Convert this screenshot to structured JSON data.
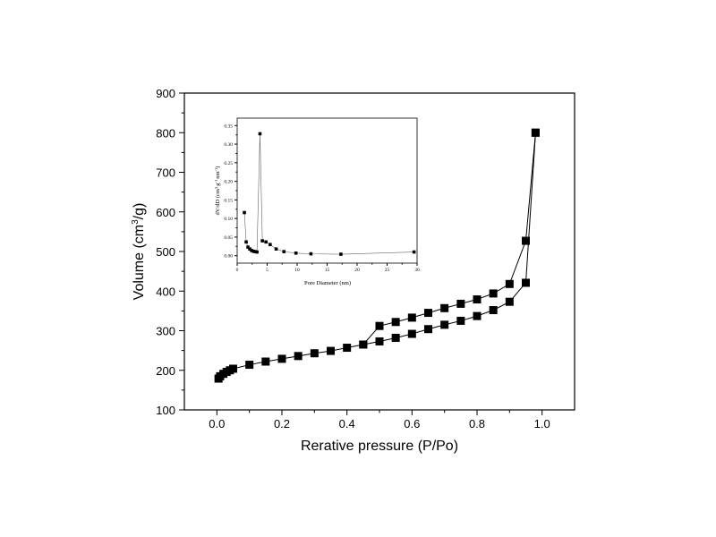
{
  "chart_data": [
    {
      "type": "line",
      "title": "",
      "xlabel": "Rerative pressure (P/Po)",
      "ylabel_parts": [
        "Volume (cm",
        "3",
        "/g)"
      ],
      "xlim": [
        -0.1,
        1.1
      ],
      "ylim": [
        100,
        900
      ],
      "xticks": [
        0.0,
        0.2,
        0.4,
        0.6,
        0.8,
        1.0
      ],
      "xtick_labels": [
        "0.0",
        "0.2",
        "0.4",
        "0.6",
        "0.8",
        "1.0"
      ],
      "yticks": [
        100,
        200,
        300,
        400,
        500,
        600,
        700,
        800,
        900
      ],
      "ytick_labels": [
        "100",
        "200",
        "300",
        "400",
        "500",
        "600",
        "700",
        "800",
        "900"
      ],
      "marker": "filled-square",
      "grid": false,
      "series": [
        {
          "points": [
            [
              0.005,
              179
            ],
            [
              0.01,
              185
            ],
            [
              0.02,
              191
            ],
            [
              0.03,
              196
            ],
            [
              0.04,
              200
            ],
            [
              0.05,
              204
            ],
            [
              0.1,
              214
            ],
            [
              0.15,
              222
            ],
            [
              0.2,
              229
            ],
            [
              0.25,
              236
            ],
            [
              0.3,
              243
            ],
            [
              0.35,
              249
            ],
            [
              0.4,
              257
            ],
            [
              0.45,
              265
            ],
            [
              0.5,
              273
            ],
            [
              0.55,
              282
            ],
            [
              0.6,
              292
            ],
            [
              0.65,
              304
            ],
            [
              0.7,
              315
            ],
            [
              0.75,
              325
            ],
            [
              0.8,
              337
            ],
            [
              0.85,
              352
            ],
            [
              0.9,
              373
            ],
            [
              0.95,
              421
            ],
            [
              0.98,
              800
            ]
          ]
        },
        {
          "points": [
            [
              0.98,
              800
            ],
            [
              0.95,
              527
            ],
            [
              0.9,
              418
            ],
            [
              0.85,
              394
            ],
            [
              0.8,
              379
            ],
            [
              0.75,
              368
            ],
            [
              0.7,
              357
            ],
            [
              0.65,
              345
            ],
            [
              0.6,
              333
            ],
            [
              0.55,
              322
            ],
            [
              0.5,
              312
            ],
            [
              0.45,
              265
            ]
          ]
        }
      ]
    },
    {
      "type": "line",
      "title": "",
      "xlabel": "Pore Diameter (nm)",
      "ylabel": "dV/dD (cm3 g-1 nm-1)",
      "ylabel_parts": [
        "dV/dD (cm",
        "3",
        "g",
        "-1",
        "nm",
        "-1",
        ")"
      ],
      "xlim": [
        0,
        30
      ],
      "ylim": [
        -0.02,
        0.37
      ],
      "xticks": [
        0,
        5,
        10,
        15,
        20,
        25,
        30
      ],
      "xtick_labels": [
        "0",
        "5",
        "10",
        "15",
        "20",
        "25",
        "30"
      ],
      "yticks": [
        0.0,
        0.05,
        0.1,
        0.15,
        0.2,
        0.25,
        0.3,
        0.35
      ],
      "ytick_labels": [
        "0.00",
        "0.05",
        "0.10",
        "0.15",
        "0.20",
        "0.25",
        "0.30",
        "0.35"
      ],
      "marker": "filled-square",
      "grid": false,
      "series": [
        {
          "points": [
            [
              1.2,
              0.116
            ],
            [
              1.5,
              0.037
            ],
            [
              1.8,
              0.023
            ],
            [
              2.1,
              0.018
            ],
            [
              2.4,
              0.014
            ],
            [
              2.7,
              0.012
            ],
            [
              3.0,
              0.011
            ],
            [
              3.3,
              0.01
            ],
            [
              3.8,
              0.328
            ],
            [
              4.2,
              0.04
            ],
            [
              4.8,
              0.037
            ],
            [
              5.5,
              0.03
            ],
            [
              6.5,
              0.018
            ],
            [
              7.8,
              0.011
            ],
            [
              9.8,
              0.007
            ],
            [
              12.3,
              0.005
            ],
            [
              17.3,
              0.004
            ],
            [
              29.5,
              0.01
            ]
          ]
        }
      ]
    }
  ]
}
